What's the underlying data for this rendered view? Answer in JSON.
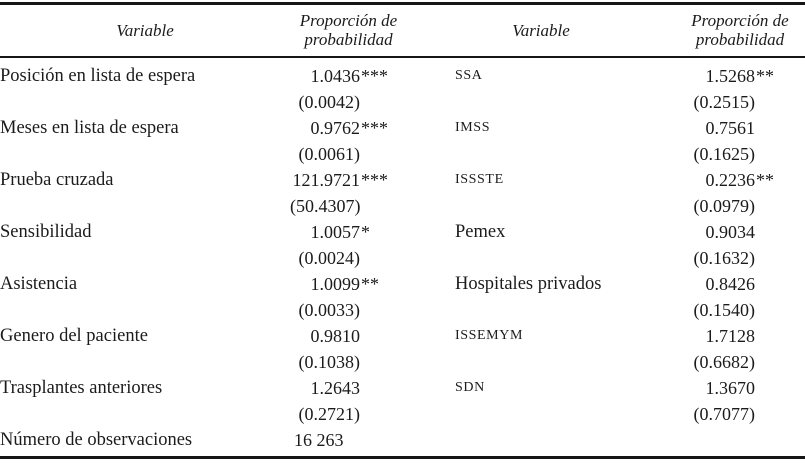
{
  "table": {
    "header": {
      "variable_label_left": "Variable",
      "value_label_left": "Proporción de\nprobabilidad",
      "variable_label_right": "Variable",
      "value_label_right": "Proporción de\nprobabilidad"
    },
    "rows": [
      {
        "left": {
          "label": "Posición en lista de espera",
          "value": "1.0436",
          "stars": "***",
          "se": "(0.0042)"
        },
        "right": {
          "label": "SSA",
          "caps": true,
          "value": "1.5268",
          "stars": "**",
          "se": "(0.2515)"
        }
      },
      {
        "left": {
          "label": "Meses en lista de espera",
          "value": "0.9762",
          "stars": "***",
          "se": "(0.0061)"
        },
        "right": {
          "label": "IMSS",
          "caps": true,
          "value": "0.7561",
          "stars": "",
          "se": "(0.1625)"
        }
      },
      {
        "left": {
          "label": "Prueba cruzada",
          "value": "121.9721",
          "stars": "***",
          "se": "(50.4307)"
        },
        "right": {
          "label": "ISSSTE",
          "caps": true,
          "value": "0.2236",
          "stars": "**",
          "se": "(0.0979)"
        }
      },
      {
        "left": {
          "label": "Sensibilidad",
          "value": "1.0057",
          "stars": "*",
          "se": "(0.0024)"
        },
        "right": {
          "label": "Pemex",
          "caps": false,
          "value": "0.9034",
          "stars": "",
          "se": "(0.1632)"
        }
      },
      {
        "left": {
          "label": "Asistencia",
          "value": "1.0099",
          "stars": "**",
          "se": "(0.0033)"
        },
        "right": {
          "label": "Hospitales privados",
          "caps": false,
          "value": "0.8426",
          "stars": "",
          "se": "(0.1540)"
        }
      },
      {
        "left": {
          "label": "Genero del paciente",
          "value": "0.9810",
          "stars": "",
          "se": "(0.1038)"
        },
        "right": {
          "label": "ISSEMYM",
          "caps": true,
          "value": "1.7128",
          "stars": "",
          "se": "(0.6682)"
        }
      },
      {
        "left": {
          "label": "Trasplantes anteriores",
          "value": "1.2643",
          "stars": "",
          "se": "(0.2721)"
        },
        "right": {
          "label": "SDN",
          "caps": true,
          "value": "1.3670",
          "stars": "",
          "se": "(0.7077)"
        }
      },
      {
        "left": {
          "label": "Número de observaciones",
          "value": "16 263",
          "stars": "",
          "se": "",
          "obs": true
        },
        "right": null
      }
    ]
  }
}
